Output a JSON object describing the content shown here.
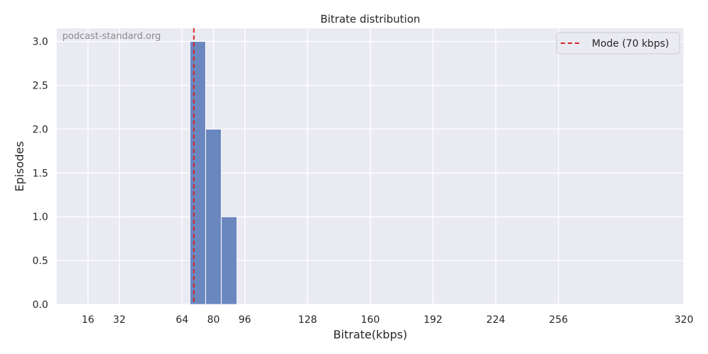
{
  "chart_data": {
    "type": "bar",
    "title": "Bitrate distribution",
    "xlabel": "Bitrate(kbps)",
    "ylabel": "Episodes",
    "xlim": [
      0,
      320
    ],
    "ylim": [
      0,
      3.15
    ],
    "xticks": [
      16,
      32,
      64,
      80,
      96,
      128,
      160,
      192,
      224,
      256,
      320
    ],
    "yticks": [
      0.0,
      0.5,
      1.0,
      1.5,
      2.0,
      2.5,
      3.0
    ],
    "ytick_labels": [
      "0.0",
      "0.5",
      "1.0",
      "1.5",
      "2.0",
      "2.5",
      "3.0"
    ],
    "bins": [
      {
        "start": 68,
        "end": 76,
        "count": 3
      },
      {
        "start": 76,
        "end": 84,
        "count": 2
      },
      {
        "start": 84,
        "end": 92,
        "count": 1
      }
    ],
    "mode_line": {
      "x": 70,
      "label": "Mode (70 kbps)",
      "color": "#d62728",
      "style": "dashed"
    },
    "bar_color": "#6b87c0",
    "background_color": "#eaeaf2",
    "grid": true,
    "legend_position": "top-right",
    "watermark": "podcast-standard.org"
  }
}
